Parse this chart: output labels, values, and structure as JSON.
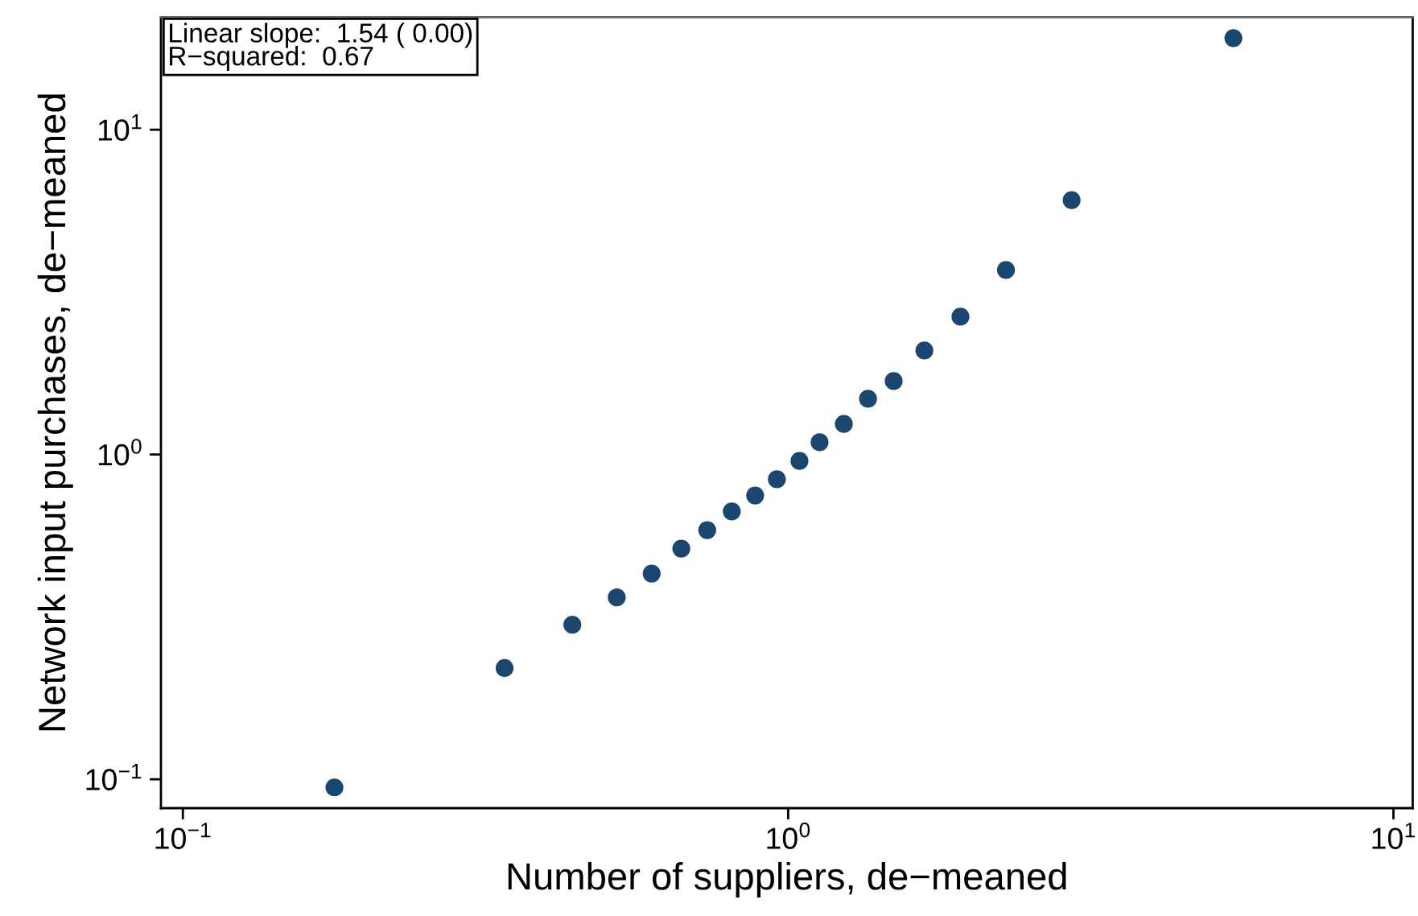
{
  "chart_data": {
    "type": "scatter",
    "xlabel": "Number of suppliers, de−meaned",
    "ylabel": "Network input purchases, de−meaned",
    "annotations": [
      "Linear slope:  1.54 ( 0.00)",
      "R−squared:  0.67"
    ],
    "x": [
      0.178,
      0.34,
      0.44,
      0.521,
      0.595,
      0.666,
      0.735,
      0.807,
      0.882,
      0.958,
      1.044,
      1.127,
      1.236,
      1.355,
      1.494,
      1.679,
      1.926,
      2.29,
      2.94,
      5.44
    ],
    "values": [
      0.0944,
      0.22,
      0.299,
      0.363,
      0.43,
      0.513,
      0.585,
      0.668,
      0.748,
      0.839,
      0.955,
      1.091,
      1.242,
      1.484,
      1.683,
      2.091,
      2.657,
      3.7,
      6.07,
      19.15
    ],
    "color": "#1a476f",
    "marker": "circle",
    "log": "xy",
    "xlim": [
      0.092,
      10.76
    ],
    "ylim": [
      0.0815,
      22.2
    ],
    "xticks": [
      {
        "value": 0.1,
        "label": "10$^{−1}$"
      },
      {
        "value": 1,
        "label": "10$^{0}$"
      },
      {
        "value": 10,
        "label": "10$^{1}$"
      }
    ],
    "yticks": [
      {
        "value": 0.1,
        "label": "10$^{−1}$"
      },
      {
        "value": 1,
        "label": "10$^{0}$"
      },
      {
        "value": 10,
        "label": "10$^{1}$"
      }
    ]
  }
}
